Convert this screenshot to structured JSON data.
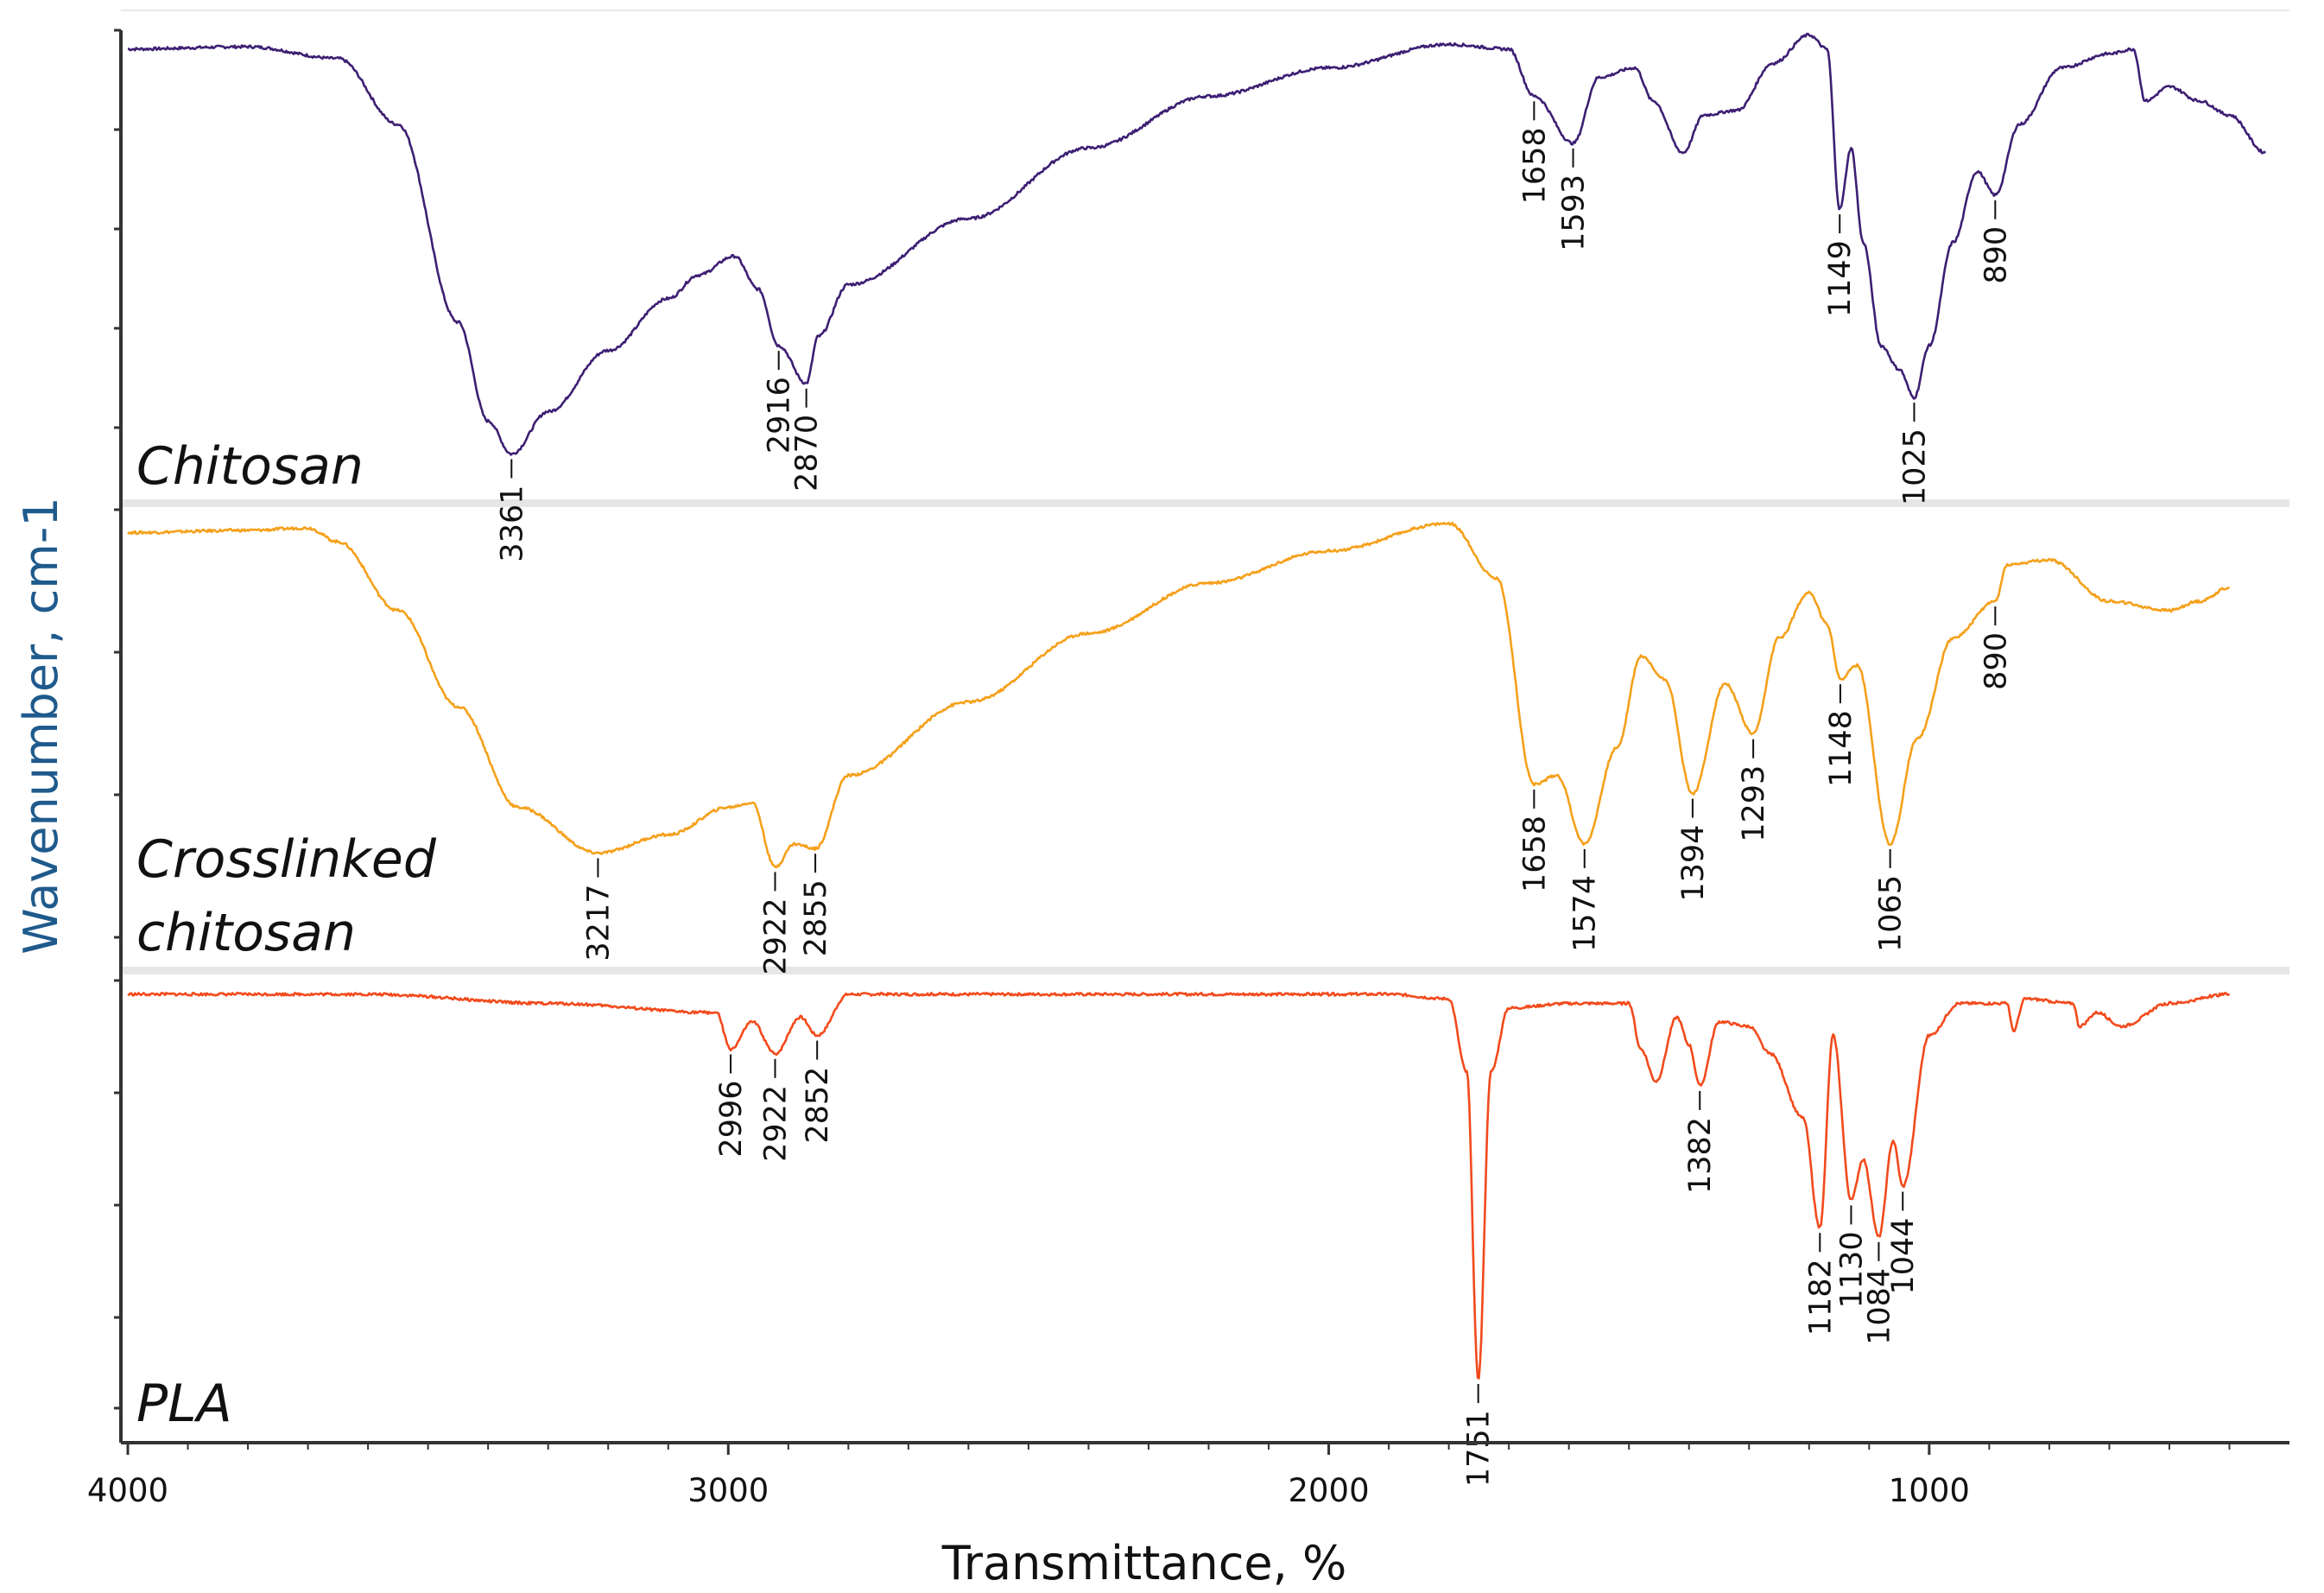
{
  "chart_data": {
    "type": "line",
    "title": "",
    "xlabel": "Transmittance, %",
    "ylabel": "Wavenumber, cm-1",
    "xlim": [
      4000,
      400
    ],
    "x_ticks": [
      4000,
      3000,
      2000,
      1000
    ],
    "x_tick_labels": [
      "4000",
      "3000",
      "2000",
      "1000"
    ],
    "grid": false,
    "legend": "none (panel labels)",
    "colors": {
      "chitosan": "#3d1f73",
      "crosslinked": "#f5a01a",
      "pla": "#f24a1c",
      "axis": "#333333",
      "separator": "#e6e6e6",
      "ylabel": "#1f5a8c"
    },
    "panels": [
      {
        "name": "Chitosan",
        "label_lines": [
          "Chitosan"
        ],
        "color": "#3d1f73",
        "spectrum": [
          [
            4000,
            0.96
          ],
          [
            3800,
            0.965
          ],
          [
            3650,
            0.94
          ],
          [
            3550,
            0.8
          ],
          [
            3450,
            0.38
          ],
          [
            3400,
            0.17
          ],
          [
            3361,
            0.1
          ],
          [
            3300,
            0.19
          ],
          [
            3200,
            0.32
          ],
          [
            3100,
            0.43
          ],
          [
            3050,
            0.48
          ],
          [
            2990,
            0.52
          ],
          [
            2950,
            0.45
          ],
          [
            2916,
            0.33
          ],
          [
            2870,
            0.25
          ],
          [
            2850,
            0.35
          ],
          [
            2800,
            0.46
          ],
          [
            2600,
            0.6
          ],
          [
            2400,
            0.75
          ],
          [
            2200,
            0.86
          ],
          [
            2000,
            0.92
          ],
          [
            1800,
            0.97
          ],
          [
            1700,
            0.96
          ],
          [
            1658,
            0.86
          ],
          [
            1593,
            0.76
          ],
          [
            1550,
            0.9
          ],
          [
            1490,
            0.92
          ],
          [
            1460,
            0.85
          ],
          [
            1410,
            0.74
          ],
          [
            1375,
            0.82
          ],
          [
            1320,
            0.83
          ],
          [
            1260,
            0.93
          ],
          [
            1200,
            0.99
          ],
          [
            1170,
            0.96
          ],
          [
            1149,
            0.62
          ],
          [
            1130,
            0.75
          ],
          [
            1110,
            0.55
          ],
          [
            1080,
            0.33
          ],
          [
            1050,
            0.28
          ],
          [
            1025,
            0.22
          ],
          [
            1000,
            0.33
          ],
          [
            960,
            0.55
          ],
          [
            920,
            0.7
          ],
          [
            890,
            0.65
          ],
          [
            850,
            0.8
          ],
          [
            780,
            0.92
          ],
          [
            700,
            0.95
          ],
          [
            660,
            0.96
          ],
          [
            640,
            0.85
          ],
          [
            600,
            0.88
          ],
          [
            550,
            0.85
          ],
          [
            500,
            0.82
          ],
          [
            440,
            0.74
          ]
        ],
        "peaks": [
          3361,
          2916,
          2870,
          1658,
          1593,
          1149,
          1025,
          890
        ],
        "peak_labels": [
          "3361",
          "2916",
          "2870",
          "1658",
          "1593",
          "1149",
          "1025",
          "890"
        ]
      },
      {
        "name": "Crosslinked chitosan",
        "label_lines": [
          "Crosslinked",
          "chitosan"
        ],
        "color": "#f5a01a",
        "spectrum": [
          [
            4000,
            0.95
          ],
          [
            3800,
            0.955
          ],
          [
            3700,
            0.96
          ],
          [
            3650,
            0.93
          ],
          [
            3550,
            0.78
          ],
          [
            3450,
            0.57
          ],
          [
            3350,
            0.35
          ],
          [
            3217,
            0.25
          ],
          [
            3100,
            0.29
          ],
          [
            3000,
            0.35
          ],
          [
            2960,
            0.36
          ],
          [
            2922,
            0.22
          ],
          [
            2890,
            0.27
          ],
          [
            2855,
            0.26
          ],
          [
            2800,
            0.42
          ],
          [
            2600,
            0.58
          ],
          [
            2400,
            0.73
          ],
          [
            2200,
            0.84
          ],
          [
            2000,
            0.91
          ],
          [
            1800,
            0.97
          ],
          [
            1720,
            0.85
          ],
          [
            1658,
            0.4
          ],
          [
            1620,
            0.42
          ],
          [
            1574,
            0.27
          ],
          [
            1520,
            0.48
          ],
          [
            1480,
            0.68
          ],
          [
            1440,
            0.63
          ],
          [
            1394,
            0.38
          ],
          [
            1340,
            0.62
          ],
          [
            1293,
            0.51
          ],
          [
            1250,
            0.72
          ],
          [
            1200,
            0.82
          ],
          [
            1170,
            0.75
          ],
          [
            1148,
            0.63
          ],
          [
            1120,
            0.66
          ],
          [
            1065,
            0.27
          ],
          [
            1020,
            0.5
          ],
          [
            960,
            0.72
          ],
          [
            890,
            0.8
          ],
          [
            870,
            0.88
          ],
          [
            800,
            0.89
          ],
          [
            700,
            0.8
          ],
          [
            600,
            0.78
          ],
          [
            550,
            0.8
          ],
          [
            500,
            0.83
          ]
        ],
        "peaks": [
          3217,
          2922,
          2855,
          1658,
          1574,
          1394,
          1293,
          1148,
          1065,
          890
        ],
        "peak_labels": [
          "3217",
          "2922",
          "2855",
          "1658",
          "1574",
          "1394",
          "1293",
          "1148",
          "1065",
          "890"
        ]
      },
      {
        "name": "PLA",
        "label_lines": [
          "PLA"
        ],
        "color": "#f24a1c",
        "spectrum": [
          [
            4000,
            0.97
          ],
          [
            3600,
            0.97
          ],
          [
            3300,
            0.95
          ],
          [
            3020,
            0.93
          ],
          [
            2996,
            0.85
          ],
          [
            2960,
            0.91
          ],
          [
            2922,
            0.84
          ],
          [
            2880,
            0.92
          ],
          [
            2852,
            0.88
          ],
          [
            2800,
            0.97
          ],
          [
            2400,
            0.97
          ],
          [
            1900,
            0.97
          ],
          [
            1800,
            0.96
          ],
          [
            1770,
            0.8
          ],
          [
            1751,
            0.13
          ],
          [
            1730,
            0.8
          ],
          [
            1700,
            0.94
          ],
          [
            1600,
            0.95
          ],
          [
            1500,
            0.95
          ],
          [
            1480,
            0.85
          ],
          [
            1455,
            0.78
          ],
          [
            1420,
            0.92
          ],
          [
            1400,
            0.86
          ],
          [
            1382,
            0.77
          ],
          [
            1350,
            0.91
          ],
          [
            1300,
            0.9
          ],
          [
            1265,
            0.84
          ],
          [
            1210,
            0.7
          ],
          [
            1182,
            0.46
          ],
          [
            1160,
            0.88
          ],
          [
            1130,
            0.52
          ],
          [
            1110,
            0.61
          ],
          [
            1084,
            0.44
          ],
          [
            1060,
            0.65
          ],
          [
            1044,
            0.55
          ],
          [
            1000,
            0.88
          ],
          [
            950,
            0.95
          ],
          [
            870,
            0.95
          ],
          [
            860,
            0.89
          ],
          [
            840,
            0.96
          ],
          [
            760,
            0.95
          ],
          [
            750,
            0.9
          ],
          [
            720,
            0.93
          ],
          [
            680,
            0.9
          ],
          [
            600,
            0.95
          ],
          [
            500,
            0.97
          ]
        ],
        "peaks": [
          2996,
          2922,
          2852,
          1751,
          1382,
          1182,
          1130,
          1084,
          1044
        ],
        "peak_labels": [
          "2996",
          "2922",
          "2852",
          "1751",
          "1382",
          "1182",
          "1130",
          "1084",
          "1044"
        ]
      }
    ]
  }
}
